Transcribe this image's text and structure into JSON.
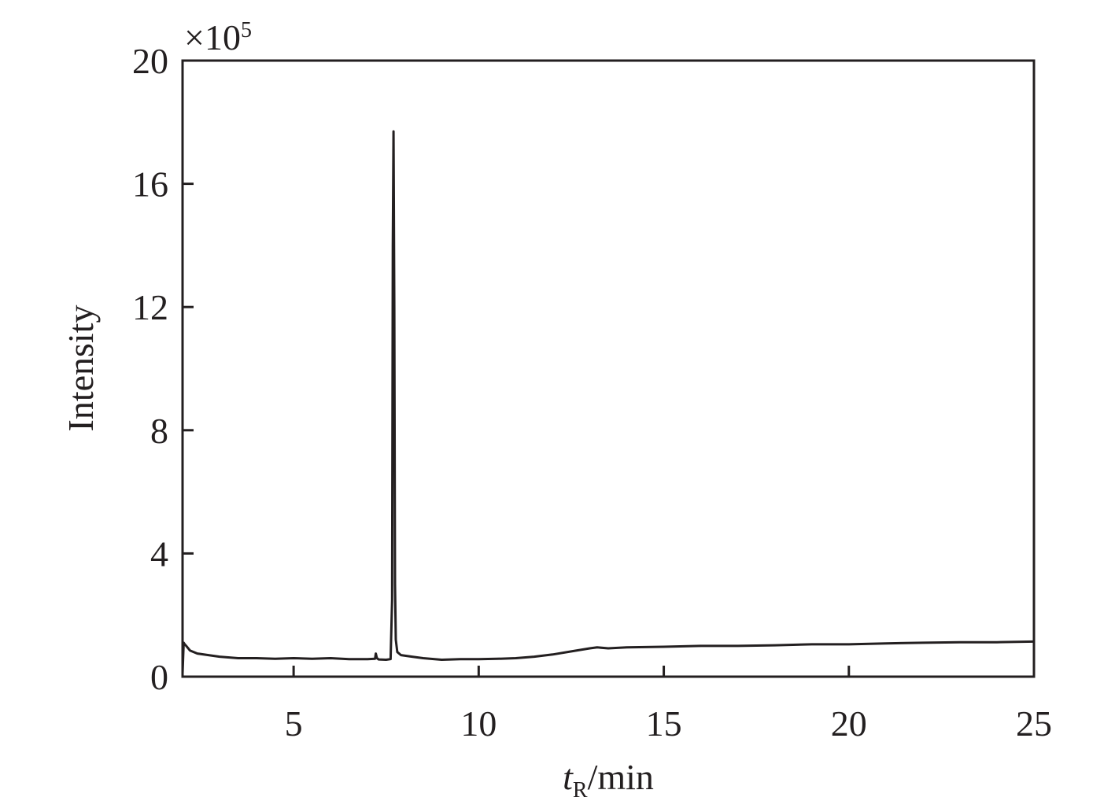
{
  "chart_data": {
    "type": "line",
    "title": "",
    "xlabel_main": "t",
    "xlabel_sub": "R",
    "xlabel_unit": "/min",
    "ylabel": "Intensity",
    "y_multiplier_base": "×10",
    "y_multiplier_exp": "5",
    "xlim": [
      2.0,
      25.0
    ],
    "ylim": [
      0,
      20
    ],
    "xticks": [
      5,
      10,
      15,
      20,
      25
    ],
    "yticks": [
      0,
      4,
      8,
      12,
      16,
      20
    ],
    "grid": false,
    "line_color": "#231f20",
    "series": [
      {
        "x": [
          2.0,
          2.03,
          2.06,
          2.1,
          2.2,
          2.4,
          2.7,
          3.0,
          3.5,
          4.0,
          4.5,
          5.0,
          5.5,
          6.0,
          6.5,
          7.0,
          7.2,
          7.22,
          7.25,
          7.3,
          7.5,
          7.62,
          7.66,
          7.68,
          7.7,
          7.72,
          7.74,
          7.76,
          7.8,
          7.9,
          8.2,
          8.5,
          9.0,
          9.5,
          10.0,
          10.5,
          11.0,
          11.5,
          12.0,
          12.5,
          13.0,
          13.2,
          13.5,
          14.0,
          15.0,
          16.0,
          17.0,
          18.0,
          19.0,
          20.0,
          21.0,
          22.0,
          23.0,
          24.0,
          25.0
        ],
        "y": [
          0.1,
          1.1,
          1.05,
          1.0,
          0.85,
          0.75,
          0.7,
          0.65,
          0.6,
          0.6,
          0.58,
          0.6,
          0.58,
          0.6,
          0.57,
          0.57,
          0.58,
          0.75,
          0.6,
          0.56,
          0.55,
          0.57,
          2.5,
          14.0,
          17.7,
          12.0,
          3.0,
          1.2,
          0.8,
          0.7,
          0.65,
          0.6,
          0.55,
          0.57,
          0.57,
          0.58,
          0.6,
          0.65,
          0.72,
          0.82,
          0.92,
          0.95,
          0.92,
          0.95,
          0.97,
          1.0,
          1.0,
          1.02,
          1.05,
          1.05,
          1.08,
          1.1,
          1.12,
          1.12,
          1.14
        ]
      }
    ]
  }
}
